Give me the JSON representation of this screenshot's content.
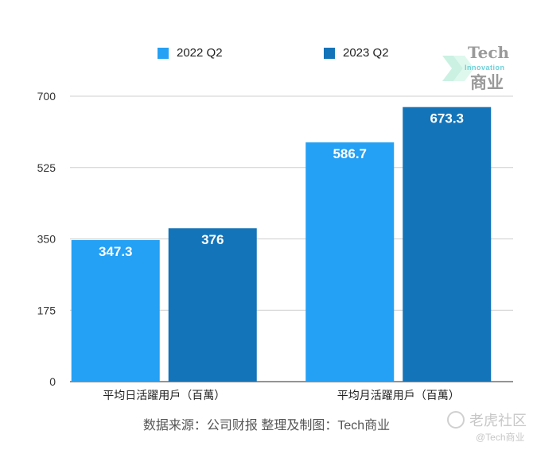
{
  "chart_data": {
    "type": "bar",
    "categories": [
      "平均日活躍用戶（百萬）",
      "平均月活躍用戶（百萬）"
    ],
    "series": [
      {
        "name": "2022 Q2",
        "values": [
          347.3,
          586.7
        ],
        "labels": [
          "347.3",
          "586.7"
        ],
        "color": "#24a0f4"
      },
      {
        "name": "2023 Q2",
        "values": [
          376,
          673.3
        ],
        "labels": [
          "376",
          "673.3"
        ],
        "color": "#1374b9"
      }
    ],
    "ylim": [
      0,
      700
    ],
    "yticks": [
      0,
      175,
      350,
      525,
      700
    ],
    "grid": true,
    "legend": "top",
    "title": "",
    "xlabel": "",
    "ylabel": ""
  },
  "source_text": "数据来源：公司财报 整理及制图：Tech商业",
  "watermark": {
    "tech": "Tech",
    "innovation": "Innovation",
    "biz": "商业"
  },
  "platform": {
    "name": "老虎社区",
    "handle": "@Tech商业"
  },
  "icons": [
    "arrow-logo-icon",
    "tiger-logo-icon"
  ]
}
